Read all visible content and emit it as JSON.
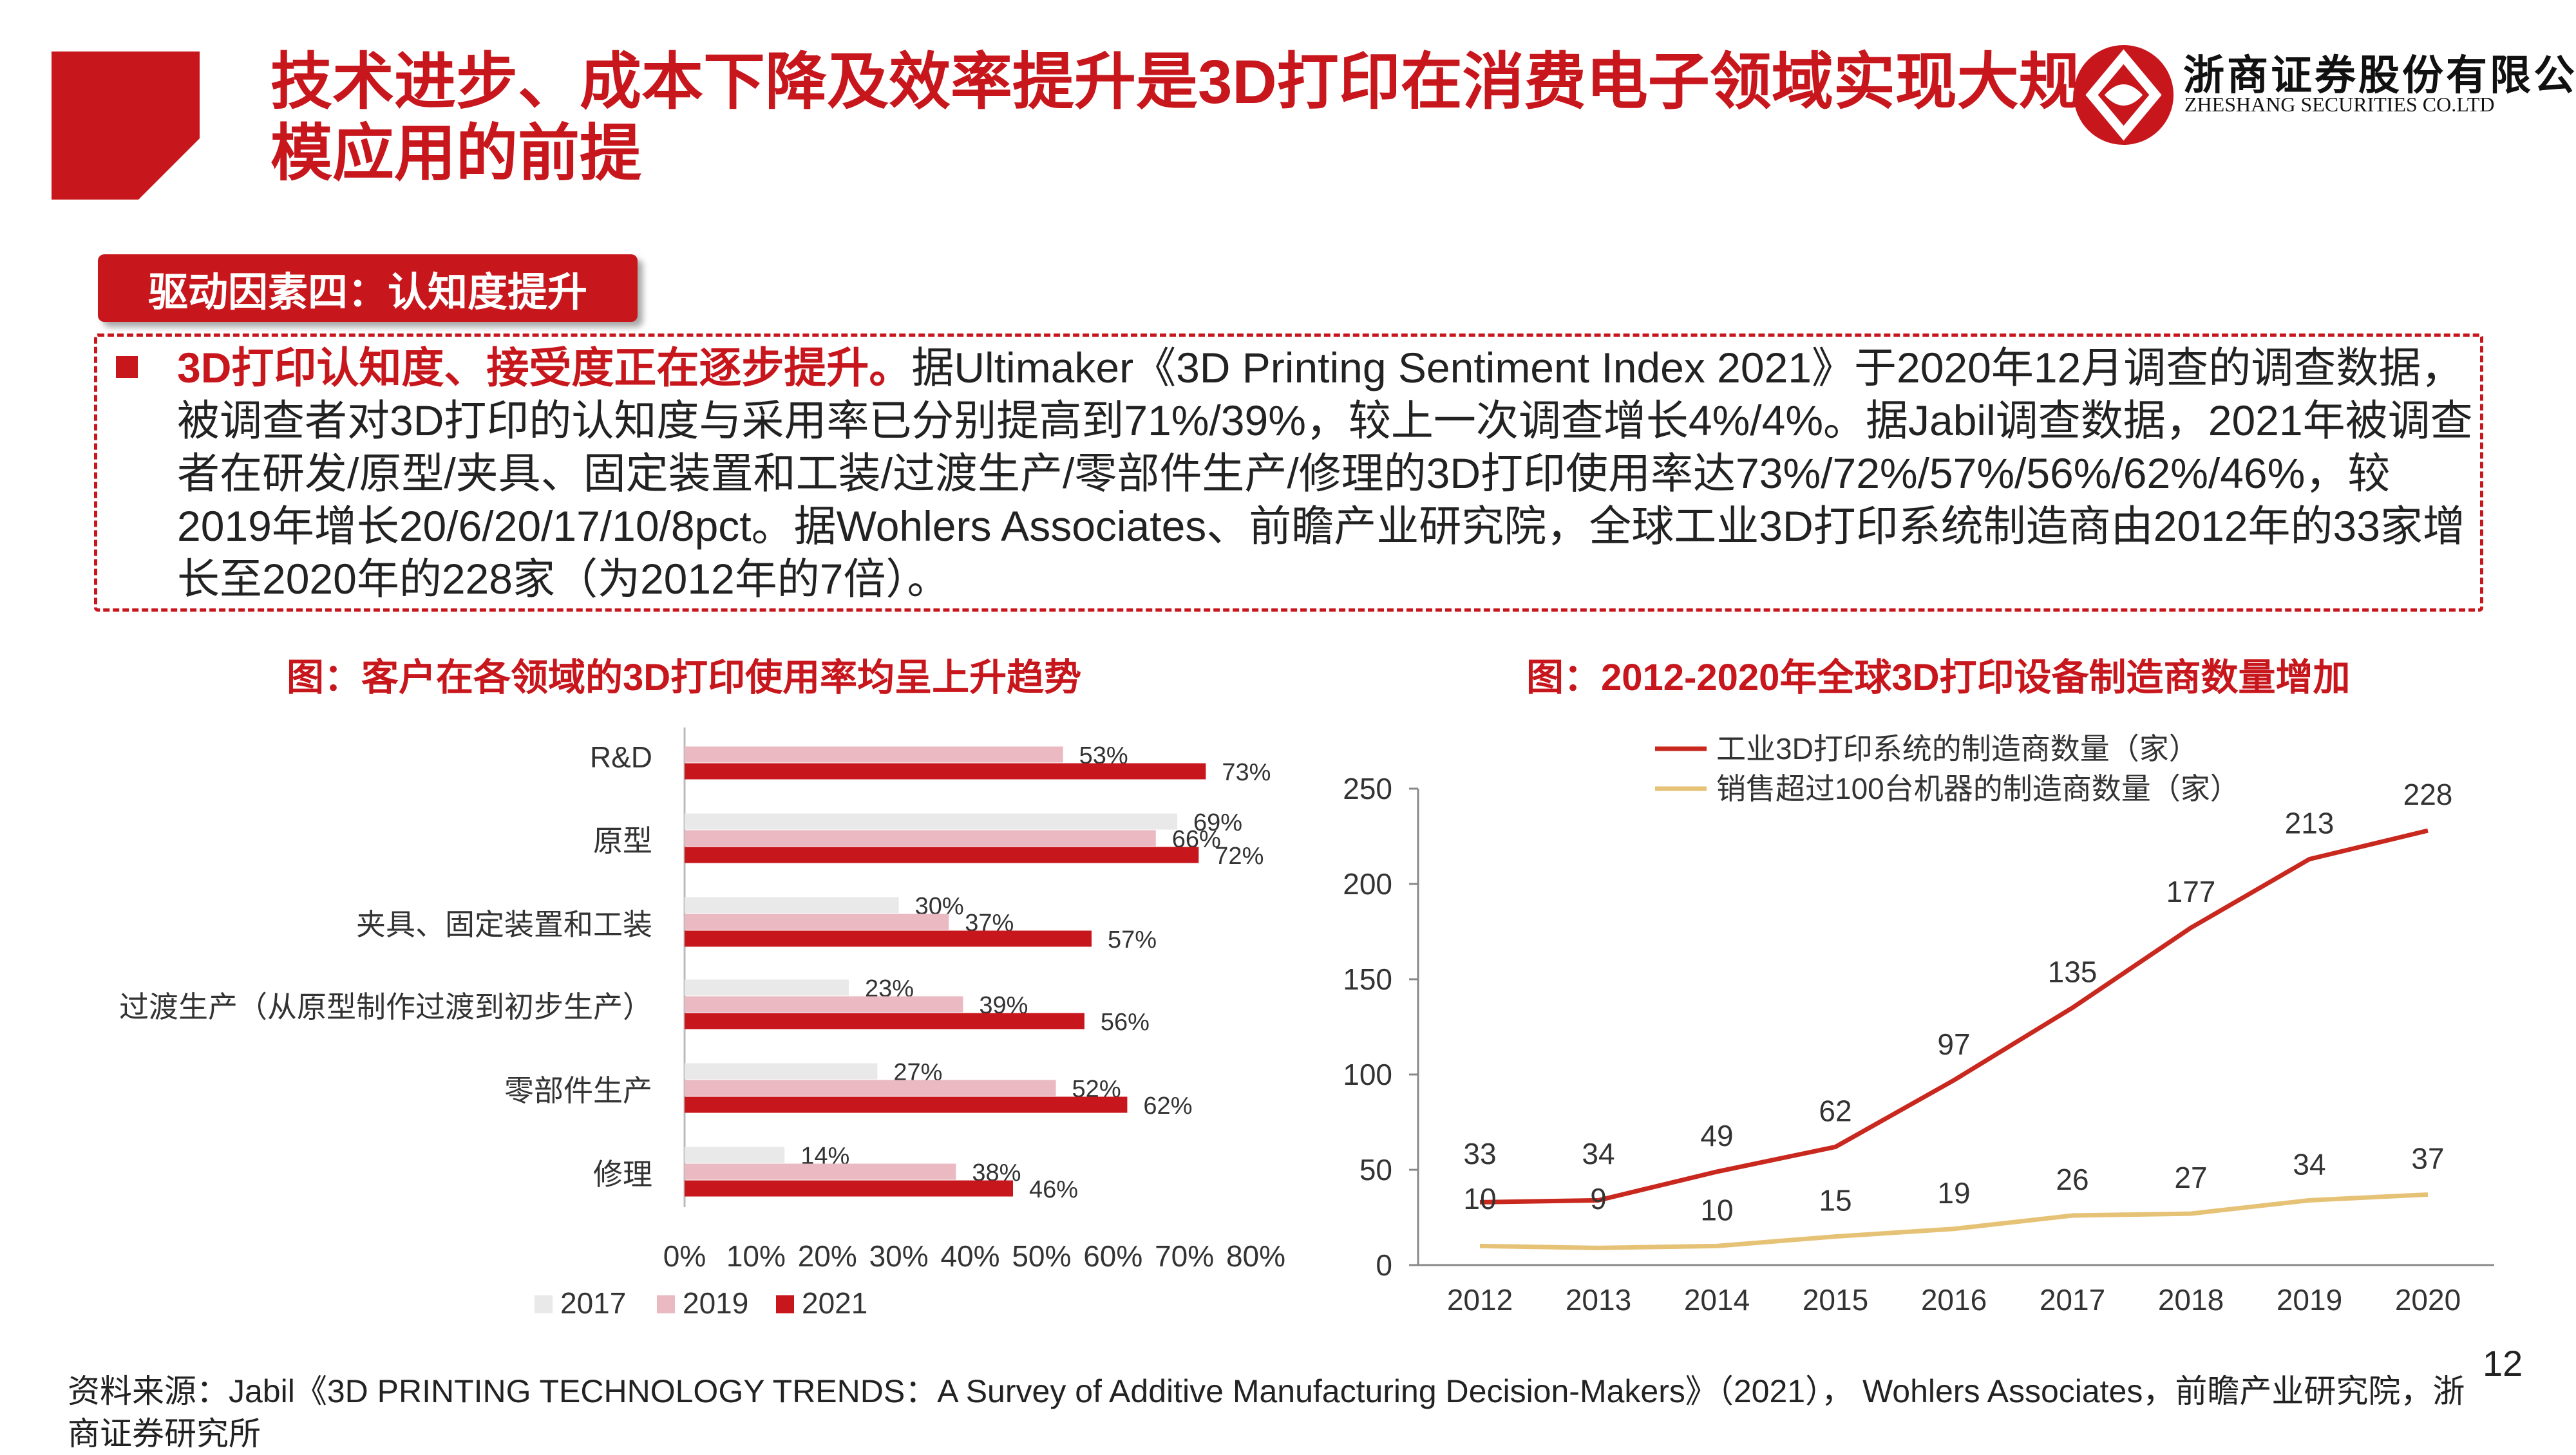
{
  "header": {
    "title": "技术进步、成本下降及效率提升是3D打印在消费电子领域实现大规模应用的前提",
    "logo_cn": "浙商证券股份有限公司",
    "logo_en": "ZHESHANG SECURITIES CO.LTD"
  },
  "section": {
    "badge": "驱动因素四：认知度提升",
    "highlight": "3D打印认知度、接受度正在逐步提升。",
    "body": "据Ultimaker《3D Printing Sentiment Index 2021》于2020年12月调查的调查数据，被调查者对3D打印的认知度与采用率已分别提高到71%/39%，较上一次调查增长4%/4%。据Jabil调查数据，2021年被调查者在研发/原型/夹具、固定装置和工装/过渡生产/零部件生产/修理的3D打印使用率达73%/72%/57%/56%/62%/46%，较2019年增长20/6/20/17/10/8pct。据Wohlers Associates、前瞻产业研究院，全球工业3D打印系统制造商由2012年的33家增长至2020年的228家（为2012年的7倍）。"
  },
  "colors": {
    "accent": "#c8161d",
    "s2017": "#e9e9e9",
    "s2019": "#eab9c1",
    "s2021": "#c8161d",
    "line_industrial": "#c8281e",
    "line_sales": "#e6c276"
  },
  "chart_data": [
    {
      "type": "bar",
      "orientation": "horizontal",
      "title": "图：客户在各领域的3D打印使用率均呈上升趋势",
      "categories": [
        "R&D",
        "原型",
        "夹具、固定装置和工装",
        "过渡生产（从原型制作过渡到初步生产）",
        "零部件生产",
        "修理"
      ],
      "series": [
        {
          "name": "2017",
          "values": [
            null,
            69,
            30,
            23,
            27,
            14
          ]
        },
        {
          "name": "2019",
          "values": [
            53,
            66,
            37,
            39,
            52,
            38
          ]
        },
        {
          "name": "2021",
          "values": [
            73,
            72,
            57,
            56,
            62,
            46
          ]
        }
      ],
      "xlim": [
        0,
        80
      ],
      "xticks": [
        "0%",
        "10%",
        "20%",
        "30%",
        "40%",
        "50%",
        "60%",
        "70%",
        "80%"
      ],
      "legend": "bottom"
    },
    {
      "type": "line",
      "title": "图：2012-2020年全球3D打印设备制造商数量增加",
      "x": [
        "2012",
        "2013",
        "2014",
        "2015",
        "2016",
        "2017",
        "2018",
        "2019",
        "2020"
      ],
      "series": [
        {
          "name": "工业3D打印系统的制造商数量（家）",
          "values": [
            33,
            34,
            49,
            62,
            97,
            135,
            177,
            213,
            228
          ]
        },
        {
          "name": "销售超过100台机器的制造商数量（家）",
          "values": [
            10,
            9,
            10,
            15,
            19,
            26,
            27,
            34,
            37
          ]
        }
      ],
      "ylim": [
        0,
        250
      ],
      "yticks": [
        "0",
        "50",
        "100",
        "150",
        "200",
        "250"
      ],
      "legend": "top"
    }
  ],
  "footer": {
    "source": "资料来源：Jabil《3D PRINTING TECHNOLOGY TRENDS：A Survey of Additive Manufacturing Decision-Makers》（2021）， Wohlers Associates，前瞻产业研究院，浙商证券研究所",
    "page": "12"
  }
}
